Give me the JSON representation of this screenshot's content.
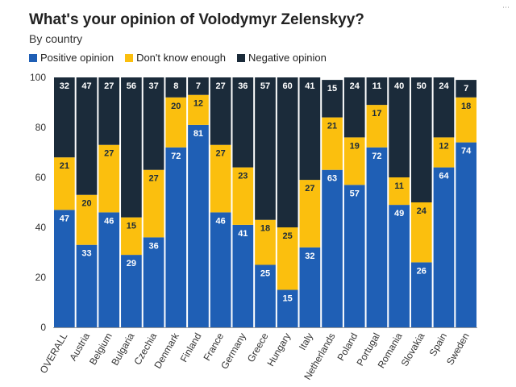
{
  "header": {
    "title": "What's your opinion of Volodymyr Zelenskyy?",
    "subtitle": "By country",
    "top_right_mark": "⋯"
  },
  "legend": [
    {
      "label": "Positive opinion",
      "color": "#1f5fb5"
    },
    {
      "label": "Don't know enough",
      "color": "#fbbf0e"
    },
    {
      "label": "Negative opinion",
      "color": "#1b2b3a"
    }
  ],
  "chart_data": {
    "type": "bar",
    "stacked": true,
    "title": "What's your opinion of Volodymyr Zelenskyy?",
    "subtitle": "By country",
    "xlabel": "",
    "ylabel": "",
    "ylim": [
      0,
      100
    ],
    "yticks": [
      "0",
      "20",
      "40",
      "60",
      "80",
      "100"
    ],
    "categories": [
      "OVERALL",
      "Austria",
      "Belgium",
      "Bulgaria",
      "Czechia",
      "Denmark",
      "Finland",
      "France",
      "Germany",
      "Greece",
      "Hungary",
      "Italy",
      "Netherlands",
      "Poland",
      "Portugal",
      "Romania",
      "Slovakia",
      "Spain",
      "Sweden"
    ],
    "series": [
      {
        "name": "Positive opinion",
        "color": "#1f5fb5",
        "values": [
          47,
          33,
          46,
          29,
          36,
          72,
          81,
          46,
          41,
          25,
          15,
          32,
          63,
          57,
          72,
          49,
          26,
          64,
          74
        ]
      },
      {
        "name": "Don't know enough",
        "color": "#fbbf0e",
        "values": [
          21,
          20,
          27,
          15,
          27,
          20,
          12,
          27,
          23,
          18,
          25,
          27,
          21,
          19,
          17,
          11,
          24,
          12,
          18
        ]
      },
      {
        "name": "Negative opinion",
        "color": "#1b2b3a",
        "values": [
          32,
          47,
          27,
          56,
          37,
          8,
          7,
          27,
          36,
          57,
          60,
          41,
          15,
          24,
          11,
          40,
          50,
          24,
          7
        ]
      }
    ],
    "grid": false,
    "legend_position": "top-left"
  }
}
